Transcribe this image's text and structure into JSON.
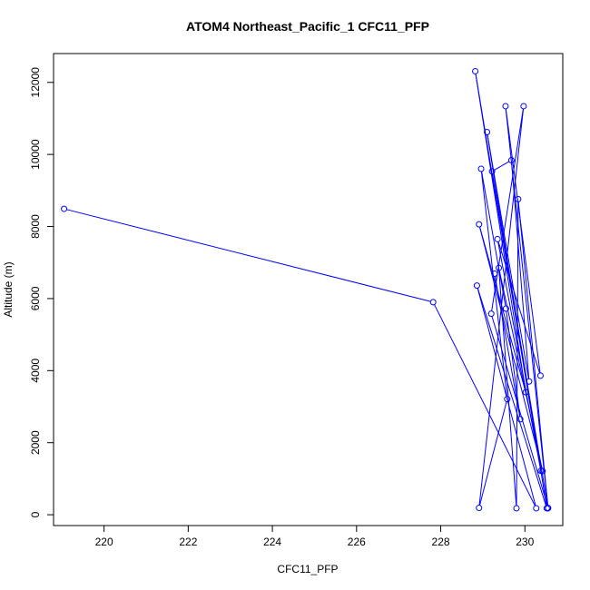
{
  "chart_data": {
    "type": "line",
    "title": "ATOM4 Northeast_Pacific_1 CFC11_PFP",
    "xlabel": "CFC11_PFP",
    "ylabel": "Altitude (m)",
    "xlim": [
      218.8,
      230.9
    ],
    "ylim": [
      -300,
      12800
    ],
    "xticks": [
      220,
      222,
      224,
      226,
      228,
      230
    ],
    "yticks": [
      0,
      2000,
      4000,
      6000,
      8000,
      10000,
      12000
    ],
    "grid": false,
    "line_color": "#0000ff",
    "series": [
      {
        "points": [
          {
            "x": 219.05,
            "y": 8490
          },
          {
            "x": 227.82,
            "y": 5900
          },
          {
            "x": 230.27,
            "y": 180
          },
          {
            "x": 228.86,
            "y": 6360
          },
          {
            "x": 230.52,
            "y": 180
          },
          {
            "x": 229.1,
            "y": 10620
          },
          {
            "x": 230.1,
            "y": 3700
          },
          {
            "x": 229.68,
            "y": 9840
          },
          {
            "x": 229.22,
            "y": 9530
          },
          {
            "x": 230.55,
            "y": 180
          },
          {
            "x": 229.54,
            "y": 11340
          },
          {
            "x": 230.37,
            "y": 3860
          },
          {
            "x": 229.35,
            "y": 7650
          },
          {
            "x": 230.38,
            "y": 1220
          },
          {
            "x": 228.82,
            "y": 12310
          },
          {
            "x": 230.02,
            "y": 3400
          },
          {
            "x": 228.91,
            "y": 8060
          },
          {
            "x": 230.42,
            "y": 1210
          },
          {
            "x": 229.38,
            "y": 6850
          },
          {
            "x": 229.8,
            "y": 180
          },
          {
            "x": 229.84,
            "y": 8760
          },
          {
            "x": 230.55,
            "y": 190
          },
          {
            "x": 229.2,
            "y": 5580
          },
          {
            "x": 229.97,
            "y": 11340
          },
          {
            "x": 228.91,
            "y": 190
          },
          {
            "x": 229.58,
            "y": 3210
          },
          {
            "x": 228.96,
            "y": 9600
          },
          {
            "x": 229.55,
            "y": 5720
          },
          {
            "x": 229.89,
            "y": 2650
          },
          {
            "x": 229.28,
            "y": 6690
          }
        ]
      }
    ]
  }
}
